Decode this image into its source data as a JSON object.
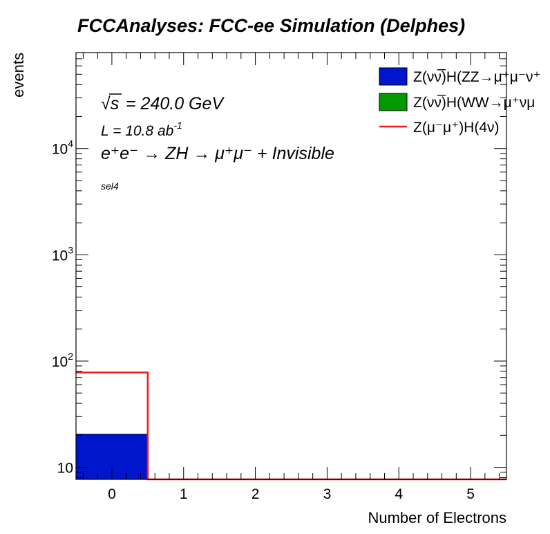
{
  "chart_data": {
    "type": "bar",
    "title": "FCCAnalyses: FCC-ee Simulation (Delphes)",
    "xlabel": "Number of Electrons",
    "ylabel": "events",
    "x_ticks": [
      "0",
      "1",
      "2",
      "3",
      "4",
      "5"
    ],
    "y_tick_labels": [
      {
        "value": 10,
        "base": "10",
        "exp": ""
      },
      {
        "value": 100,
        "base": "10",
        "exp": "2"
      },
      {
        "value": 1000,
        "base": "10",
        "exp": "3"
      },
      {
        "value": 10000,
        "base": "10",
        "exp": "4"
      }
    ],
    "xlim": [
      -0.5,
      5.5
    ],
    "ylim": [
      7.7,
      80000
    ],
    "log_y": true,
    "bin_edges": [
      -0.5,
      0.5,
      1.5,
      2.5,
      3.5,
      4.5,
      5.5
    ],
    "series": [
      {
        "name": "Z(νν̅)H(ZZ→μ⁺μ⁻ν⁺ν⁻)",
        "legend_label": "Z(νν̅)H(ZZ→μ⁺μ⁻ν⁺",
        "style": "fill",
        "color": "#0016cc",
        "stacked": true,
        "values": [
          20.5,
          0,
          0,
          0,
          0,
          0
        ]
      },
      {
        "name": "Z(νν̅)H(WW→μ⁺νμ⁻ν)",
        "legend_label": "Z(νν̅)H(WW→μ⁺νμ",
        "style": "fill",
        "color": "#009a00",
        "stacked": true,
        "values": [
          0,
          0,
          0,
          0,
          0,
          0
        ]
      },
      {
        "name": "Z(μ⁻μ⁺)H(4ν)",
        "legend_label": "Z(μ⁻μ⁺)H(4ν)",
        "style": "line",
        "color": "#ee1a1a",
        "stacked": false,
        "values": [
          78,
          0,
          0,
          0,
          0,
          0
        ]
      }
    ],
    "legend_position": "top-right",
    "annotations": {
      "sqrt_s_label": "√s",
      "energy": "= 240.0 GeV",
      "lumi_base": "L = 10.8 ab",
      "lumi_exp": "-1",
      "process": "e⁺e⁻ → ZH → μ⁺μ⁻ + Invisible",
      "selection": "sel4"
    }
  }
}
